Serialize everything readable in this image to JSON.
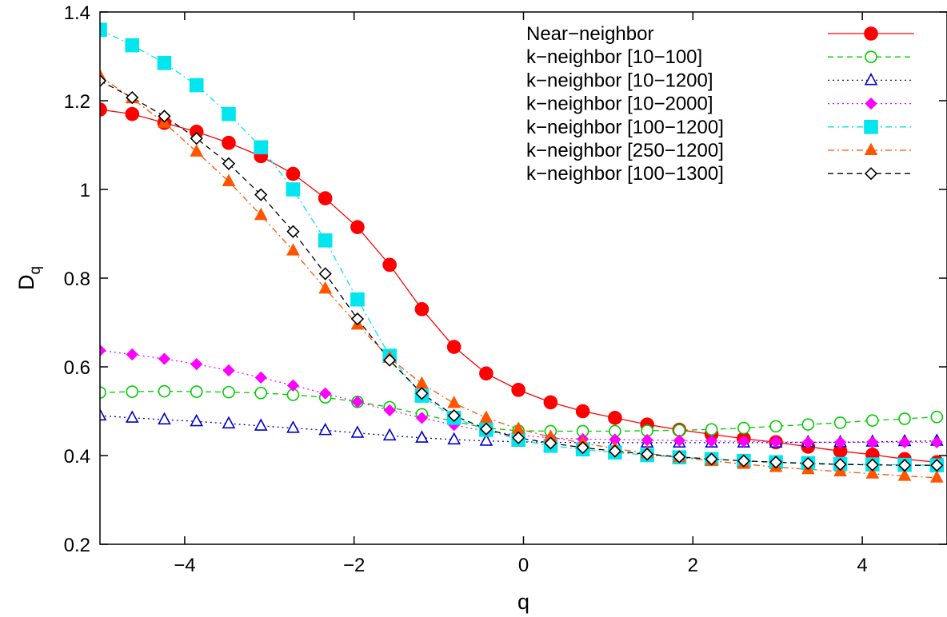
{
  "chart_data": {
    "type": "line",
    "xlabel": "q",
    "ylabel": "D",
    "ylabel_subscript": "q",
    "xlim": [
      -5,
      5
    ],
    "ylim": [
      0.2,
      1.4
    ],
    "xticks": [
      -4,
      -2,
      0,
      2,
      4
    ],
    "xtick_labels": [
      "−4",
      "−2",
      "0",
      "2",
      "4"
    ],
    "yticks": [
      0.2,
      0.4,
      0.6,
      0.8,
      1.0,
      1.2,
      1.4
    ],
    "ytick_labels": [
      "0.2",
      "0.4",
      "0.6",
      "0.8",
      "1",
      "1.2",
      "1.4"
    ],
    "legend_position": "top-right",
    "grid": false,
    "x": [
      -5.0,
      -4.62,
      -4.24,
      -3.86,
      -3.48,
      -3.1,
      -2.72,
      -2.34,
      -1.96,
      -1.58,
      -1.2,
      -0.82,
      -0.44,
      -0.06,
      0.32,
      0.7,
      1.08,
      1.46,
      1.84,
      2.22,
      2.6,
      2.98,
      3.36,
      3.74,
      4.12,
      4.5,
      4.88
    ],
    "series": [
      {
        "name": "Near−neighbor",
        "color": "#ff0000",
        "marker": "circle-filled",
        "line": "solid",
        "values": [
          1.18,
          1.17,
          1.15,
          1.13,
          1.105,
          1.075,
          1.035,
          0.98,
          0.915,
          0.83,
          0.73,
          0.645,
          0.585,
          0.548,
          0.52,
          0.5,
          0.485,
          0.47,
          0.458,
          0.448,
          0.438,
          0.43,
          0.42,
          0.41,
          0.402,
          0.392,
          0.385
        ]
      },
      {
        "name": "k−neighbor  [10−100]",
        "color": "#00cc00",
        "marker": "circle-open",
        "line": "dashed",
        "values": [
          0.542,
          0.544,
          0.545,
          0.544,
          0.543,
          0.541,
          0.537,
          0.531,
          0.521,
          0.509,
          0.493,
          0.477,
          0.462,
          0.456,
          0.455,
          0.455,
          0.455,
          0.456,
          0.457,
          0.459,
          0.462,
          0.466,
          0.47,
          0.474,
          0.479,
          0.483,
          0.487
        ]
      },
      {
        "name": "k−neighbor  [10−1200]",
        "color": "#0000cc",
        "marker": "triangle-open",
        "line": "dotted",
        "values": [
          0.49,
          0.485,
          0.481,
          0.477,
          0.472,
          0.467,
          0.462,
          0.457,
          0.451,
          0.445,
          0.44,
          0.436,
          0.433,
          0.431,
          0.43,
          0.429,
          0.429,
          0.429,
          0.429,
          0.429,
          0.429,
          0.429,
          0.43,
          0.43,
          0.431,
          0.432,
          0.433
        ]
      },
      {
        "name": "k−neighbor  [10−2000]",
        "color": "#ff00ff",
        "marker": "diamond-filled",
        "line": "dotted",
        "values": [
          0.637,
          0.628,
          0.618,
          0.606,
          0.592,
          0.576,
          0.558,
          0.54,
          0.521,
          0.502,
          0.485,
          0.469,
          0.455,
          0.446,
          0.44,
          0.437,
          0.436,
          0.435,
          0.434,
          0.433,
          0.432,
          0.431,
          0.43,
          0.43,
          0.43,
          0.43,
          0.43
        ]
      },
      {
        "name": "k−neighbor  [100−1200]",
        "color": "#00e5ee",
        "marker": "square-filled",
        "line": "dash-dot",
        "values": [
          1.36,
          1.325,
          1.285,
          1.235,
          1.17,
          1.095,
          1.0,
          0.885,
          0.752,
          0.625,
          0.535,
          0.485,
          0.458,
          0.436,
          0.422,
          0.414,
          0.407,
          0.401,
          0.396,
          0.392,
          0.388,
          0.385,
          0.383,
          0.381,
          0.38,
          0.379,
          0.378
        ]
      },
      {
        "name": "k−neighbor  [250−1200]",
        "color": "#ff5500",
        "marker": "triangle-filled",
        "line": "dash-dot",
        "values": [
          1.255,
          1.205,
          1.15,
          1.085,
          1.018,
          0.942,
          0.862,
          0.776,
          0.695,
          0.62,
          0.562,
          0.518,
          0.485,
          0.46,
          0.442,
          0.428,
          0.416,
          0.405,
          0.396,
          0.388,
          0.381,
          0.374,
          0.369,
          0.364,
          0.359,
          0.354,
          0.35
        ]
      },
      {
        "name": "k−neighbor  [100−1300]",
        "color": "#000000",
        "marker": "diamond-open",
        "line": "dashed",
        "values": [
          1.245,
          1.207,
          1.165,
          1.115,
          1.058,
          0.988,
          0.905,
          0.81,
          0.708,
          0.615,
          0.54,
          0.49,
          0.46,
          0.44,
          0.428,
          0.418,
          0.41,
          0.403,
          0.397,
          0.392,
          0.388,
          0.385,
          0.382,
          0.38,
          0.379,
          0.378,
          0.378
        ]
      }
    ]
  }
}
